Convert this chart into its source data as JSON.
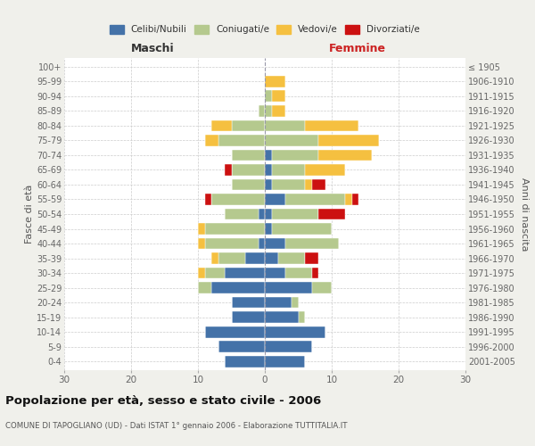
{
  "age_groups": [
    "0-4",
    "5-9",
    "10-14",
    "15-19",
    "20-24",
    "25-29",
    "30-34",
    "35-39",
    "40-44",
    "45-49",
    "50-54",
    "55-59",
    "60-64",
    "65-69",
    "70-74",
    "75-79",
    "80-84",
    "85-89",
    "90-94",
    "95-99",
    "100+"
  ],
  "birth_years": [
    "2001-2005",
    "1996-2000",
    "1991-1995",
    "1986-1990",
    "1981-1985",
    "1976-1980",
    "1971-1975",
    "1966-1970",
    "1961-1965",
    "1956-1960",
    "1951-1955",
    "1946-1950",
    "1941-1945",
    "1936-1940",
    "1931-1935",
    "1926-1930",
    "1921-1925",
    "1916-1920",
    "1911-1915",
    "1906-1910",
    "≤ 1905"
  ],
  "males": {
    "celibi": [
      6,
      7,
      9,
      5,
      5,
      8,
      6,
      3,
      1,
      0,
      1,
      0,
      0,
      0,
      0,
      0,
      0,
      0,
      0,
      0,
      0
    ],
    "coniugati": [
      0,
      0,
      0,
      0,
      0,
      2,
      3,
      4,
      8,
      9,
      5,
      8,
      5,
      5,
      5,
      7,
      5,
      1,
      0,
      0,
      0
    ],
    "vedovi": [
      0,
      0,
      0,
      0,
      0,
      0,
      1,
      1,
      1,
      1,
      0,
      0,
      0,
      0,
      0,
      2,
      3,
      0,
      0,
      0,
      0
    ],
    "divorziati": [
      0,
      0,
      0,
      0,
      0,
      0,
      0,
      0,
      0,
      0,
      0,
      1,
      0,
      1,
      0,
      0,
      0,
      0,
      0,
      0,
      0
    ]
  },
  "females": {
    "nubili": [
      6,
      7,
      9,
      5,
      4,
      7,
      3,
      2,
      3,
      1,
      1,
      3,
      1,
      1,
      1,
      0,
      0,
      0,
      0,
      0,
      0
    ],
    "coniugate": [
      0,
      0,
      0,
      1,
      1,
      3,
      4,
      4,
      8,
      9,
      7,
      9,
      5,
      5,
      7,
      8,
      6,
      1,
      1,
      0,
      0
    ],
    "vedove": [
      0,
      0,
      0,
      0,
      0,
      0,
      0,
      0,
      0,
      0,
      0,
      1,
      1,
      6,
      8,
      9,
      8,
      2,
      2,
      3,
      0
    ],
    "divorziate": [
      0,
      0,
      0,
      0,
      0,
      0,
      1,
      2,
      0,
      0,
      4,
      1,
      2,
      0,
      0,
      0,
      0,
      0,
      0,
      0,
      0
    ]
  },
  "colors": {
    "celibi": "#4472a8",
    "coniugati": "#b5c98e",
    "vedovi": "#f5c040",
    "divorziati": "#cc1111"
  },
  "xlim": 30,
  "title": "Popolazione per età, sesso e stato civile - 2006",
  "subtitle": "COMUNE DI TAPOGLIANO (UD) - Dati ISTAT 1° gennaio 2006 - Elaborazione TUTTITALIA.IT",
  "ylabel_left": "Fasce di età",
  "ylabel_right": "Anni di nascita",
  "xlabel_left": "Maschi",
  "xlabel_right": "Femmine",
  "bg_color": "#f0f0eb",
  "plot_bg_color": "#ffffff"
}
